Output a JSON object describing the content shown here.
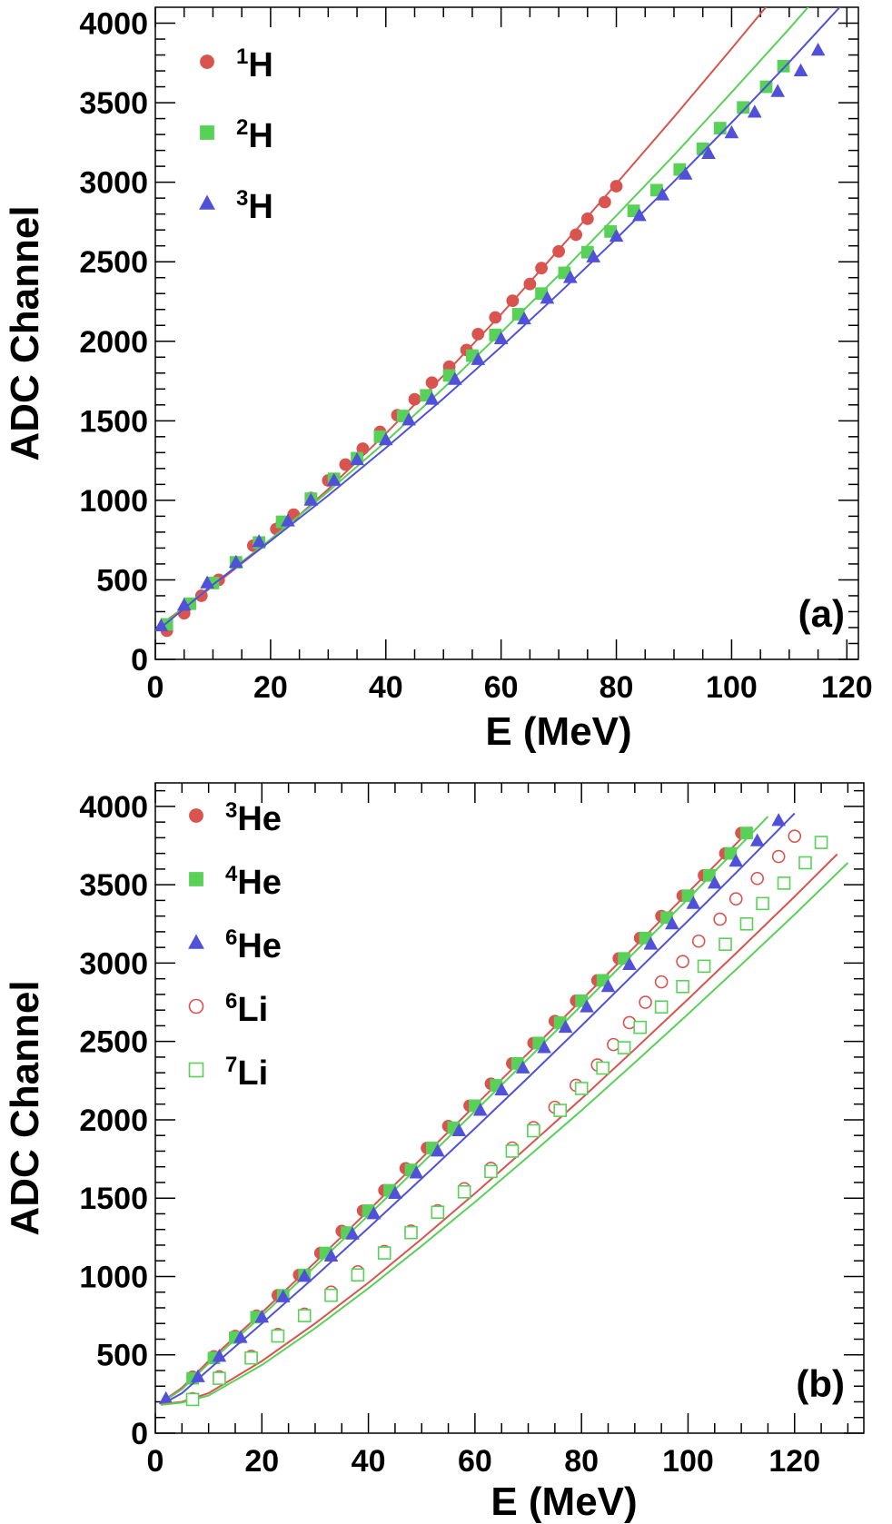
{
  "chart_data": [
    {
      "type": "scatter",
      "panel_label": "(a)",
      "xlabel": "E (MeV)",
      "ylabel": "ADC Channel",
      "xlim": [
        0,
        122
      ],
      "ylim": [
        0,
        4100
      ],
      "xticks": [
        "0",
        "20",
        "40",
        "60",
        "80",
        "100",
        "120"
      ],
      "yticks": [
        "0",
        "500",
        "1000",
        "1500",
        "2000",
        "2500",
        "3000",
        "3500",
        "4000"
      ],
      "legend_position": "top-left",
      "series": [
        {
          "name": "1H",
          "label_sup": "1",
          "label_main": "H",
          "marker": "circle",
          "filled": true,
          "color": "#d9534f",
          "x": [
            2,
            5,
            8,
            11,
            14,
            17,
            21,
            24,
            27,
            30,
            33,
            36,
            39,
            42,
            45,
            48,
            51,
            54,
            56,
            59,
            62,
            65,
            67,
            70,
            73,
            75,
            78,
            80
          ],
          "y": [
            180,
            290,
            400,
            500,
            610,
            715,
            820,
            910,
            1015,
            1125,
            1225,
            1325,
            1430,
            1535,
            1635,
            1740,
            1840,
            1945,
            2045,
            2150,
            2255,
            2360,
            2460,
            2565,
            2670,
            2770,
            2875,
            2975
          ],
          "fit": {
            "x": [
              1,
              10,
              20,
              30,
              40,
              50,
              60,
              70,
              80,
              90,
              100,
              108
            ],
            "y": [
              220,
              460,
              745,
              1070,
              1420,
              1785,
              2170,
              2575,
              2990,
              3410,
              3840,
              4190
            ]
          }
        },
        {
          "name": "2H",
          "label_sup": "2",
          "label_main": "H",
          "marker": "square",
          "filled": true,
          "color": "#59d159",
          "x": [
            2,
            6,
            10,
            14,
            18,
            22,
            27,
            31,
            35,
            39,
            43,
            47,
            51,
            55,
            59,
            63,
            67,
            71,
            75,
            79,
            83,
            87,
            91,
            95,
            98,
            102,
            106,
            109
          ],
          "y": [
            220,
            350,
            480,
            610,
            735,
            865,
            1010,
            1135,
            1265,
            1400,
            1530,
            1660,
            1785,
            1910,
            2040,
            2170,
            2300,
            2430,
            2560,
            2690,
            2820,
            2950,
            3080,
            3210,
            3340,
            3470,
            3600,
            3730
          ],
          "fit": {
            "x": [
              1,
              10,
              20,
              30,
              40,
              50,
              60,
              70,
              80,
              90,
              100,
              110,
              114
            ],
            "y": [
              210,
              470,
              755,
              1055,
              1370,
              1705,
              2055,
              2415,
              2790,
              3170,
              3565,
              3965,
              4130
            ]
          }
        },
        {
          "name": "3H",
          "label_sup": "3",
          "label_main": "H",
          "marker": "triangle",
          "filled": true,
          "color": "#5050d9",
          "x": [
            1,
            5,
            9,
            14,
            18,
            23,
            27,
            31,
            35,
            40,
            44,
            48,
            52,
            56,
            60,
            64,
            68,
            72,
            76,
            80,
            84,
            88,
            92,
            96,
            100,
            104,
            108,
            112,
            115
          ],
          "y": [
            210,
            340,
            480,
            610,
            740,
            870,
            1000,
            1125,
            1255,
            1380,
            1505,
            1635,
            1760,
            1885,
            2015,
            2140,
            2270,
            2400,
            2530,
            2660,
            2790,
            2920,
            3050,
            3180,
            3310,
            3440,
            3570,
            3700,
            3830
          ],
          "fit": {
            "x": [
              1,
              10,
              20,
              30,
              40,
              50,
              60,
              70,
              80,
              90,
              100,
              110,
              119
            ],
            "y": [
              200,
              470,
              745,
              1030,
              1330,
              1640,
              1965,
              2300,
              2645,
              3005,
              3375,
              3755,
              4110
            ]
          }
        }
      ]
    },
    {
      "type": "scatter",
      "panel_label": "(b)",
      "xlabel": "E (MeV)",
      "ylabel": "ADC Channel",
      "xlim": [
        0,
        133
      ],
      "ylim": [
        0,
        4150
      ],
      "xticks": [
        "0",
        "20",
        "40",
        "60",
        "80",
        "100",
        "120"
      ],
      "yticks": [
        "0",
        "500",
        "1000",
        "1500",
        "2000",
        "2500",
        "3000",
        "3500",
        "4000"
      ],
      "legend_position": "top-left",
      "series": [
        {
          "name": "3He",
          "label_sup": "3",
          "label_main": "He",
          "marker": "circle",
          "filled": true,
          "color": "#d9534f",
          "x": [
            7,
            11,
            15,
            19,
            23,
            27,
            31,
            35,
            39,
            43,
            47,
            51,
            55,
            59,
            63,
            67,
            71,
            75,
            79,
            83,
            87,
            91,
            95,
            99,
            103,
            107,
            110
          ],
          "y": [
            360,
            490,
            620,
            750,
            880,
            1010,
            1150,
            1290,
            1420,
            1550,
            1690,
            1820,
            1960,
            2090,
            2230,
            2360,
            2490,
            2630,
            2760,
            2890,
            3030,
            3160,
            3300,
            3430,
            3560,
            3700,
            3830
          ],
          "fit": {
            "x": [
              1,
              5,
              10,
              20,
              30,
              40,
              50,
              60,
              70,
              80,
              90,
              100,
              110,
              112
            ],
            "y": [
              195,
              290,
              460,
              770,
              1090,
              1420,
              1755,
              2090,
              2425,
              2765,
              3105,
              3450,
              3795,
              3870
            ]
          }
        },
        {
          "name": "4He",
          "label_sup": "4",
          "label_main": "He",
          "marker": "square",
          "filled": true,
          "color": "#59d159",
          "x": [
            7,
            11,
            15,
            19,
            24,
            28,
            32,
            36,
            40,
            44,
            48,
            52,
            56,
            60,
            64,
            68,
            72,
            76,
            80,
            84,
            88,
            92,
            96,
            100,
            104,
            108,
            111
          ],
          "y": [
            350,
            480,
            610,
            740,
            880,
            1010,
            1150,
            1280,
            1420,
            1550,
            1680,
            1820,
            1950,
            2090,
            2220,
            2360,
            2490,
            2620,
            2760,
            2890,
            3030,
            3160,
            3290,
            3430,
            3560,
            3700,
            3830
          ],
          "fit": {
            "x": [
              1,
              5,
              10,
              20,
              30,
              40,
              50,
              60,
              70,
              80,
              90,
              100,
              110,
              115
            ],
            "y": [
              190,
              280,
              445,
              750,
              1065,
              1390,
              1720,
              2055,
              2390,
              2730,
              3070,
              3410,
              3760,
              3935
            ]
          }
        },
        {
          "name": "6He",
          "label_sup": "6",
          "label_main": "He",
          "marker": "triangle",
          "filled": true,
          "color": "#5050d9",
          "x": [
            2,
            8,
            12,
            16,
            20,
            24,
            28,
            33,
            37,
            41,
            45,
            49,
            53,
            57,
            61,
            65,
            69,
            73,
            77,
            81,
            85,
            89,
            93,
            97,
            101,
            105,
            109,
            113,
            117
          ],
          "y": [
            220,
            360,
            490,
            610,
            740,
            870,
            1000,
            1130,
            1270,
            1400,
            1530,
            1660,
            1800,
            1930,
            2060,
            2190,
            2330,
            2460,
            2590,
            2720,
            2850,
            2990,
            3120,
            3250,
            3380,
            3510,
            3650,
            3780,
            3910
          ],
          "fit": {
            "x": [
              1,
              5,
              10,
              20,
              30,
              40,
              50,
              60,
              70,
              80,
              90,
              100,
              110,
              120
            ],
            "y": [
              180,
              255,
              405,
              700,
              1000,
              1310,
              1625,
              1945,
              2270,
              2600,
              2935,
              3270,
              3610,
              3955
            ]
          }
        },
        {
          "name": "6Li",
          "label_sup": "6",
          "label_main": "Li",
          "marker": "circle",
          "filled": false,
          "color": "#d9534f",
          "x": [
            7,
            12,
            18,
            23,
            28,
            33,
            38,
            43,
            48,
            53,
            58,
            63,
            67,
            71,
            75,
            79,
            83,
            86,
            89,
            92,
            95,
            99,
            102,
            106,
            109,
            113,
            117,
            120
          ],
          "y": [
            220,
            360,
            490,
            630,
            760,
            900,
            1030,
            1160,
            1290,
            1420,
            1560,
            1690,
            1820,
            1950,
            2080,
            2220,
            2350,
            2480,
            2620,
            2750,
            2880,
            3010,
            3140,
            3280,
            3410,
            3540,
            3680,
            3810
          ],
          "fit": {
            "x": [
              1,
              5,
              10,
              20,
              30,
              40,
              50,
              60,
              70,
              80,
              90,
              100,
              110,
              120,
              128
            ],
            "y": [
              185,
              200,
              255,
              460,
              700,
              960,
              1240,
              1530,
              1830,
              2135,
              2450,
              2770,
              3095,
              3425,
              3695
            ]
          }
        },
        {
          "name": "7Li",
          "label_sup": "7",
          "label_main": "Li",
          "marker": "square",
          "filled": false,
          "color": "#59d159",
          "x": [
            7,
            12,
            18,
            23,
            28,
            33,
            38,
            43,
            48,
            53,
            58,
            63,
            67,
            71,
            76,
            80,
            84,
            88,
            91,
            95,
            99,
            103,
            107,
            111,
            114,
            118,
            122,
            125
          ],
          "y": [
            215,
            350,
            480,
            620,
            750,
            880,
            1010,
            1150,
            1280,
            1410,
            1540,
            1670,
            1800,
            1930,
            2060,
            2200,
            2330,
            2460,
            2590,
            2720,
            2850,
            2980,
            3120,
            3250,
            3380,
            3510,
            3640,
            3770
          ],
          "fit": {
            "x": [
              1,
              5,
              10,
              20,
              30,
              40,
              50,
              60,
              70,
              80,
              90,
              100,
              110,
              120,
              130
            ],
            "y": [
              180,
              195,
              240,
              435,
              670,
              925,
              1195,
              1475,
              1765,
              2060,
              2365,
              2675,
              2990,
              3310,
              3640
            ]
          }
        }
      ]
    }
  ]
}
